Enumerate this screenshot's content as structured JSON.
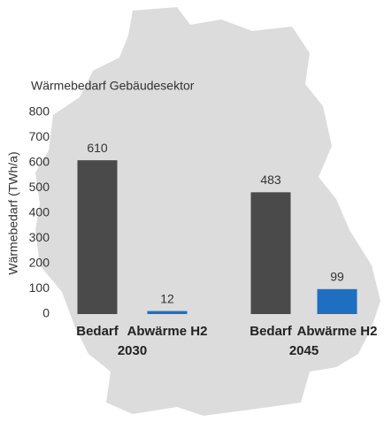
{
  "chart_data": {
    "type": "bar",
    "title": "Wärmebedarf Gebäudesektor",
    "y_label": "Wärmebedarf (TWh/a)",
    "categories": [
      "Bedarf",
      "Abwärme H2",
      "Bedarf",
      "Abwärme H2"
    ],
    "groups": [
      "2030",
      "2045"
    ],
    "values": [
      610,
      12,
      483,
      99
    ],
    "colors": [
      "#4a4a4a",
      "#1f6fc0",
      "#4a4a4a",
      "#1f6fc0"
    ],
    "ylim": [
      0,
      800
    ],
    "yticks": [
      0,
      100,
      200,
      300,
      400,
      500,
      600,
      700,
      800
    ]
  }
}
